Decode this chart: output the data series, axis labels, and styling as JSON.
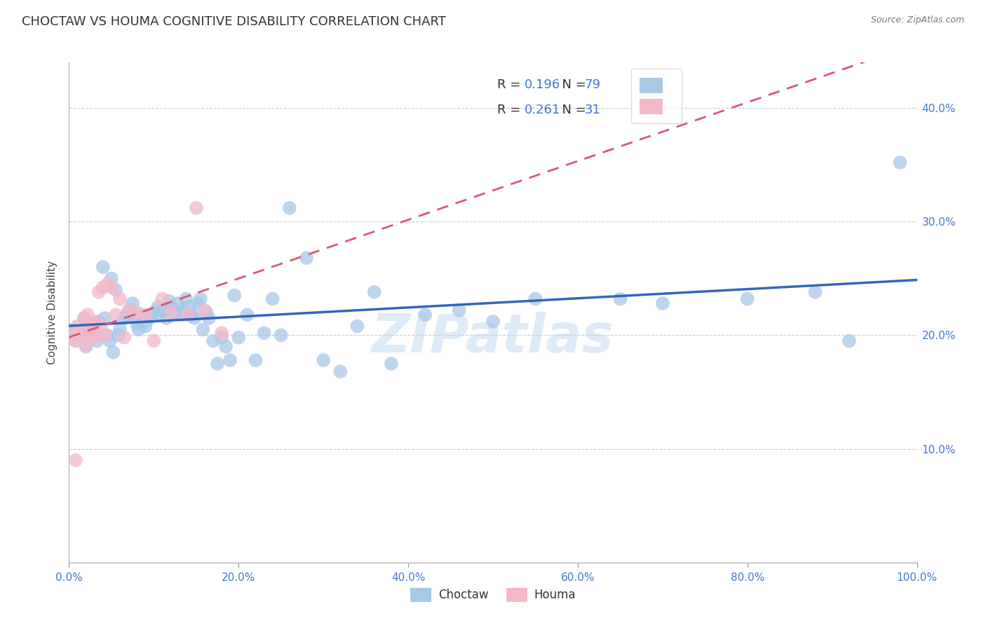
{
  "title": "CHOCTAW VS HOUMA COGNITIVE DISABILITY CORRELATION CHART",
  "source": "Source: ZipAtlas.com",
  "ylabel": "Cognitive Disability",
  "xlim": [
    0,
    1.0
  ],
  "ylim": [
    0.0,
    0.44
  ],
  "xticks": [
    0.0,
    0.2,
    0.4,
    0.6,
    0.8,
    1.0
  ],
  "xtick_labels": [
    "0.0%",
    "20.0%",
    "40.0%",
    "60.0%",
    "80.0%",
    "100.0%"
  ],
  "yticks": [
    0.1,
    0.2,
    0.3,
    0.4
  ],
  "ytick_labels": [
    "10.0%",
    "20.0%",
    "30.0%",
    "40.0%"
  ],
  "choctaw_color": "#a8c8e8",
  "houma_color": "#f4b8c8",
  "choctaw_line_color": "#3366bb",
  "houma_line_color": "#dd5577",
  "legend_R_choctaw": "0.196",
  "legend_N_choctaw": "79",
  "legend_R_houma": "0.261",
  "legend_N_houma": "31",
  "watermark": "ZIPatlas",
  "choctaw_x": [
    0.005,
    0.008,
    0.015,
    0.018,
    0.02,
    0.022,
    0.03,
    0.032,
    0.033,
    0.035,
    0.04,
    0.042,
    0.045,
    0.048,
    0.05,
    0.052,
    0.055,
    0.058,
    0.06,
    0.065,
    0.068,
    0.072,
    0.075,
    0.078,
    0.08,
    0.082,
    0.085,
    0.088,
    0.09,
    0.095,
    0.1,
    0.105,
    0.108,
    0.112,
    0.115,
    0.118,
    0.12,
    0.125,
    0.128,
    0.132,
    0.135,
    0.138,
    0.142,
    0.145,
    0.148,
    0.152,
    0.155,
    0.158,
    0.162,
    0.165,
    0.17,
    0.175,
    0.18,
    0.185,
    0.19,
    0.195,
    0.2,
    0.21,
    0.22,
    0.23,
    0.24,
    0.25,
    0.26,
    0.28,
    0.3,
    0.32,
    0.34,
    0.36,
    0.38,
    0.42,
    0.46,
    0.5,
    0.55,
    0.65,
    0.7,
    0.8,
    0.88,
    0.92,
    0.98
  ],
  "choctaw_y": [
    0.205,
    0.195,
    0.2,
    0.215,
    0.19,
    0.208,
    0.2,
    0.21,
    0.195,
    0.212,
    0.26,
    0.215,
    0.2,
    0.195,
    0.25,
    0.185,
    0.24,
    0.2,
    0.205,
    0.215,
    0.218,
    0.222,
    0.228,
    0.215,
    0.21,
    0.205,
    0.218,
    0.212,
    0.208,
    0.215,
    0.22,
    0.225,
    0.218,
    0.222,
    0.215,
    0.23,
    0.225,
    0.22,
    0.228,
    0.218,
    0.222,
    0.232,
    0.225,
    0.218,
    0.215,
    0.228,
    0.232,
    0.205,
    0.22,
    0.215,
    0.195,
    0.175,
    0.198,
    0.19,
    0.178,
    0.235,
    0.198,
    0.218,
    0.178,
    0.202,
    0.232,
    0.2,
    0.312,
    0.268,
    0.178,
    0.168,
    0.208,
    0.238,
    0.175,
    0.218,
    0.222,
    0.212,
    0.232,
    0.232,
    0.228,
    0.232,
    0.238,
    0.195,
    0.352
  ],
  "houma_x": [
    0.005,
    0.008,
    0.01,
    0.015,
    0.018,
    0.02,
    0.022,
    0.025,
    0.028,
    0.03,
    0.032,
    0.035,
    0.038,
    0.04,
    0.042,
    0.045,
    0.05,
    0.055,
    0.06,
    0.065,
    0.07,
    0.08,
    0.09,
    0.1,
    0.11,
    0.12,
    0.14,
    0.15,
    0.16,
    0.18,
    0.008
  ],
  "houma_y": [
    0.2,
    0.195,
    0.208,
    0.202,
    0.215,
    0.192,
    0.218,
    0.202,
    0.208,
    0.198,
    0.212,
    0.238,
    0.208,
    0.242,
    0.2,
    0.245,
    0.242,
    0.218,
    0.232,
    0.198,
    0.222,
    0.22,
    0.218,
    0.195,
    0.232,
    0.22,
    0.218,
    0.312,
    0.222,
    0.202,
    0.09
  ],
  "background_color": "#ffffff",
  "grid_color": "#cccccc",
  "title_fontsize": 13,
  "axis_fontsize": 11,
  "tick_fontsize": 11,
  "tick_color": "#4477cc"
}
